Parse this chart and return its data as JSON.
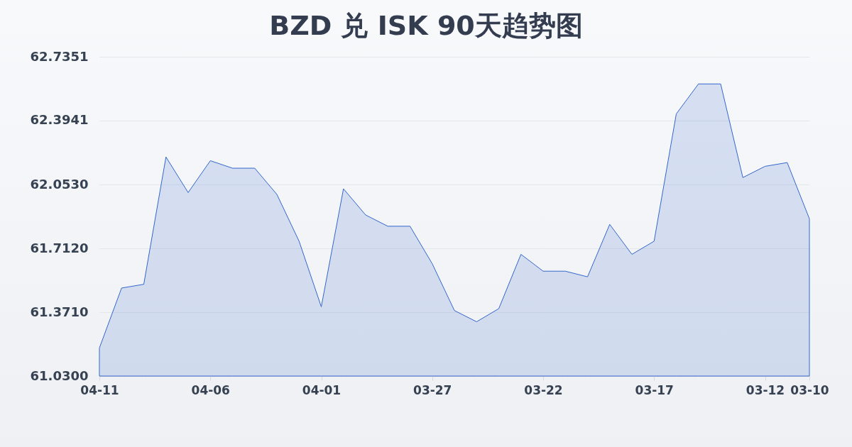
{
  "chart_data": {
    "type": "area",
    "title": "BZD 兑 ISK 90天趋势图",
    "x": [
      "--04-11",
      "--04-10",
      "--04-09",
      "--04-08",
      "--04-07",
      "--04-06",
      "--04-05",
      "--04-04",
      "--04-03",
      "--04-02",
      "--04-01",
      "--03-31",
      "--03-30",
      "--03-29",
      "--03-28",
      "--03-27",
      "--03-26",
      "--03-25",
      "--03-24",
      "--03-23",
      "--03-22",
      "--03-21",
      "--03-20",
      "--03-19",
      "--03-18",
      "--03-17",
      "--03-16",
      "--03-15",
      "--03-14",
      "--03-13",
      "--03-12",
      "--03-11",
      "--03-10"
    ],
    "series": [
      {
        "color": "#3366cc",
        "values": [
          61.18,
          61.5,
          61.52,
          62.2,
          62.01,
          62.18,
          62.14,
          62.14,
          62.0,
          61.75,
          61.4,
          62.03,
          61.89,
          61.83,
          61.83,
          61.63,
          61.38,
          61.32,
          61.39,
          61.68,
          61.59,
          61.59,
          61.56,
          61.84,
          61.68,
          61.75,
          62.43,
          62.59,
          62.59,
          62.09,
          62.15,
          62.17,
          61.87
        ]
      }
    ],
    "xlim": [
      "--04-11",
      "--03-10"
    ],
    "xticks": [
      {
        "value": "--04-11",
        "label": "04-11"
      },
      {
        "value": "--04-06",
        "label": "04-06"
      },
      {
        "value": "--04-01",
        "label": "04-01"
      },
      {
        "value": "--03-27",
        "label": "03-27"
      },
      {
        "value": "--03-22",
        "label": "03-22"
      },
      {
        "value": "--03-17",
        "label": "03-17"
      },
      {
        "value": "--03-12",
        "label": "03-12"
      },
      {
        "value": "--03-10",
        "label": "03-10"
      }
    ],
    "ylim": [
      61.03,
      62.7351
    ],
    "yticks": [
      {
        "value": 61.03,
        "label": "61.0300"
      },
      {
        "value": 61.371,
        "label": "61.3710"
      },
      {
        "value": 61.712,
        "label": "61.7120"
      },
      {
        "value": 62.053,
        "label": "62.0530"
      },
      {
        "value": 62.3941,
        "label": "62.3941"
      },
      {
        "value": 62.7351,
        "label": "62.7351"
      }
    ],
    "grid": "y"
  }
}
